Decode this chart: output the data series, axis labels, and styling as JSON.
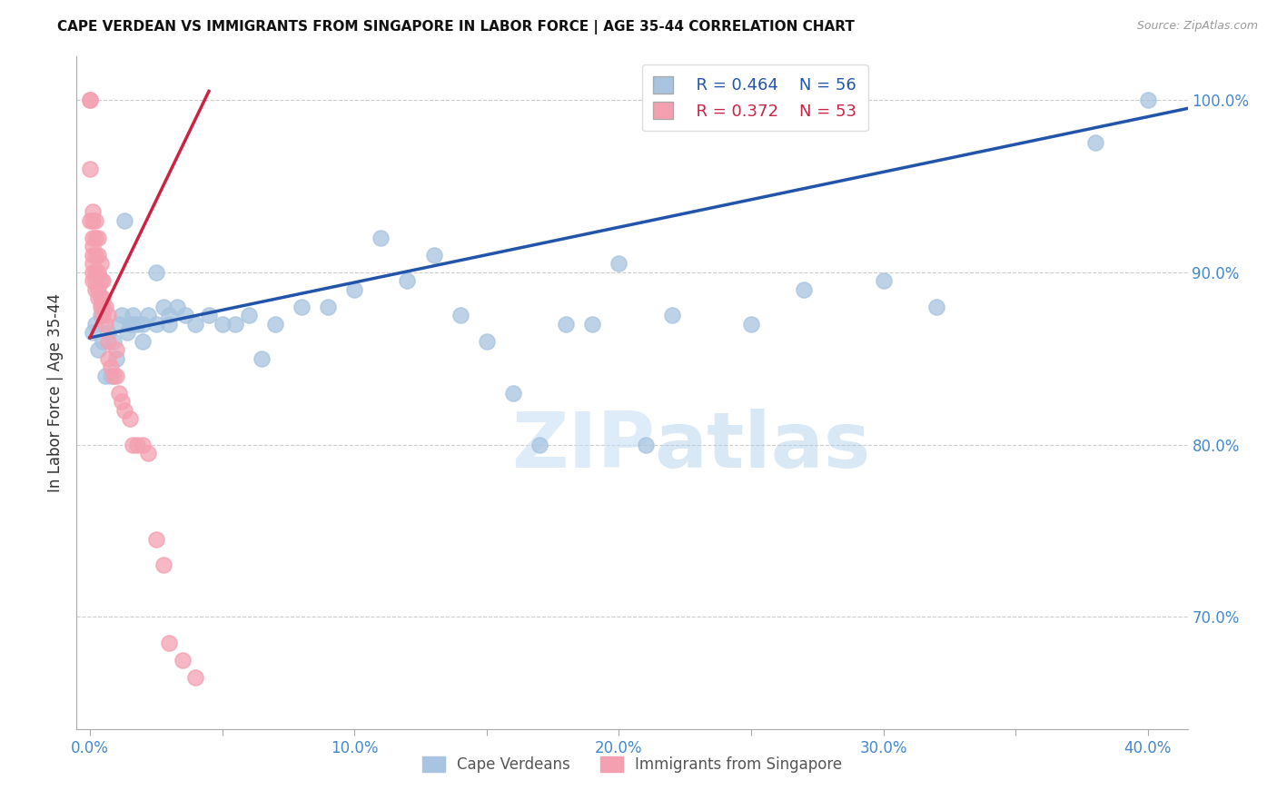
{
  "title": "CAPE VERDEAN VS IMMIGRANTS FROM SINGAPORE IN LABOR FORCE | AGE 35-44 CORRELATION CHART",
  "source": "Source: ZipAtlas.com",
  "ylabel": "In Labor Force | Age 35-44",
  "right_yticks": [
    0.7,
    0.8,
    0.9,
    1.0
  ],
  "right_yticklabels": [
    "70.0%",
    "80.0%",
    "90.0%",
    "100.0%"
  ],
  "xticks": [
    0.0,
    0.05,
    0.1,
    0.15,
    0.2,
    0.25,
    0.3,
    0.35,
    0.4
  ],
  "xticklabels": [
    "0.0%",
    "",
    "10.0%",
    "",
    "20.0%",
    "",
    "30.0%",
    "",
    "40.0%"
  ],
  "xlim": [
    -0.005,
    0.415
  ],
  "ylim": [
    0.635,
    1.025
  ],
  "legend_r_blue": "R = 0.464",
  "legend_n_blue": "N = 56",
  "legend_r_pink": "R = 0.372",
  "legend_n_pink": "N = 53",
  "blue_color": "#a8c4e0",
  "pink_color": "#f4a0b0",
  "blue_line_color": "#2255aa",
  "pink_line_color": "#cc2244",
  "right_axis_color": "#4488cc",
  "tick_color": "#aaaaaa",
  "grid_color": "#cccccc",
  "watermark_color": "#ddeeff",
  "blue_scatter_x": [
    0.001,
    0.002,
    0.003,
    0.004,
    0.005,
    0.006,
    0.007,
    0.008,
    0.009,
    0.01,
    0.011,
    0.012,
    0.013,
    0.014,
    0.015,
    0.016,
    0.018,
    0.02,
    0.022,
    0.025,
    0.028,
    0.03,
    0.033,
    0.036,
    0.04,
    0.045,
    0.05,
    0.055,
    0.06,
    0.065,
    0.07,
    0.08,
    0.09,
    0.1,
    0.11,
    0.12,
    0.13,
    0.14,
    0.15,
    0.16,
    0.17,
    0.18,
    0.19,
    0.2,
    0.21,
    0.22,
    0.25,
    0.27,
    0.3,
    0.32,
    0.016,
    0.02,
    0.025,
    0.03,
    0.38,
    0.4
  ],
  "blue_scatter_y": [
    0.865,
    0.87,
    0.855,
    0.875,
    0.86,
    0.84,
    0.865,
    0.84,
    0.86,
    0.85,
    0.87,
    0.875,
    0.93,
    0.865,
    0.87,
    0.875,
    0.87,
    0.86,
    0.875,
    0.9,
    0.88,
    0.87,
    0.88,
    0.875,
    0.87,
    0.875,
    0.87,
    0.87,
    0.875,
    0.85,
    0.87,
    0.88,
    0.88,
    0.89,
    0.92,
    0.895,
    0.91,
    0.875,
    0.86,
    0.83,
    0.8,
    0.87,
    0.87,
    0.905,
    0.8,
    0.875,
    0.87,
    0.89,
    0.895,
    0.88,
    0.87,
    0.87,
    0.87,
    0.875,
    0.975,
    1.0
  ],
  "pink_scatter_x": [
    0.0,
    0.0,
    0.0,
    0.0,
    0.001,
    0.001,
    0.001,
    0.001,
    0.001,
    0.001,
    0.001,
    0.001,
    0.002,
    0.002,
    0.002,
    0.002,
    0.002,
    0.002,
    0.003,
    0.003,
    0.003,
    0.003,
    0.003,
    0.004,
    0.004,
    0.004,
    0.004,
    0.005,
    0.005,
    0.005,
    0.005,
    0.006,
    0.006,
    0.007,
    0.007,
    0.007,
    0.008,
    0.009,
    0.01,
    0.01,
    0.011,
    0.012,
    0.013,
    0.015,
    0.016,
    0.018,
    0.02,
    0.022,
    0.025,
    0.028,
    0.03,
    0.035,
    0.04
  ],
  "pink_scatter_y": [
    1.0,
    1.0,
    0.96,
    0.93,
    0.935,
    0.93,
    0.92,
    0.915,
    0.91,
    0.905,
    0.9,
    0.895,
    0.93,
    0.92,
    0.91,
    0.9,
    0.895,
    0.89,
    0.92,
    0.91,
    0.9,
    0.89,
    0.885,
    0.905,
    0.895,
    0.885,
    0.88,
    0.895,
    0.885,
    0.88,
    0.875,
    0.88,
    0.87,
    0.875,
    0.86,
    0.85,
    0.845,
    0.84,
    0.855,
    0.84,
    0.83,
    0.825,
    0.82,
    0.815,
    0.8,
    0.8,
    0.8,
    0.795,
    0.745,
    0.73,
    0.685,
    0.675,
    0.665
  ],
  "blue_trendline_x": [
    0.0,
    0.415
  ],
  "blue_trendline_y": [
    0.862,
    0.995
  ],
  "pink_trendline_x": [
    0.0,
    0.045
  ],
  "pink_trendline_y": [
    0.862,
    1.005
  ]
}
